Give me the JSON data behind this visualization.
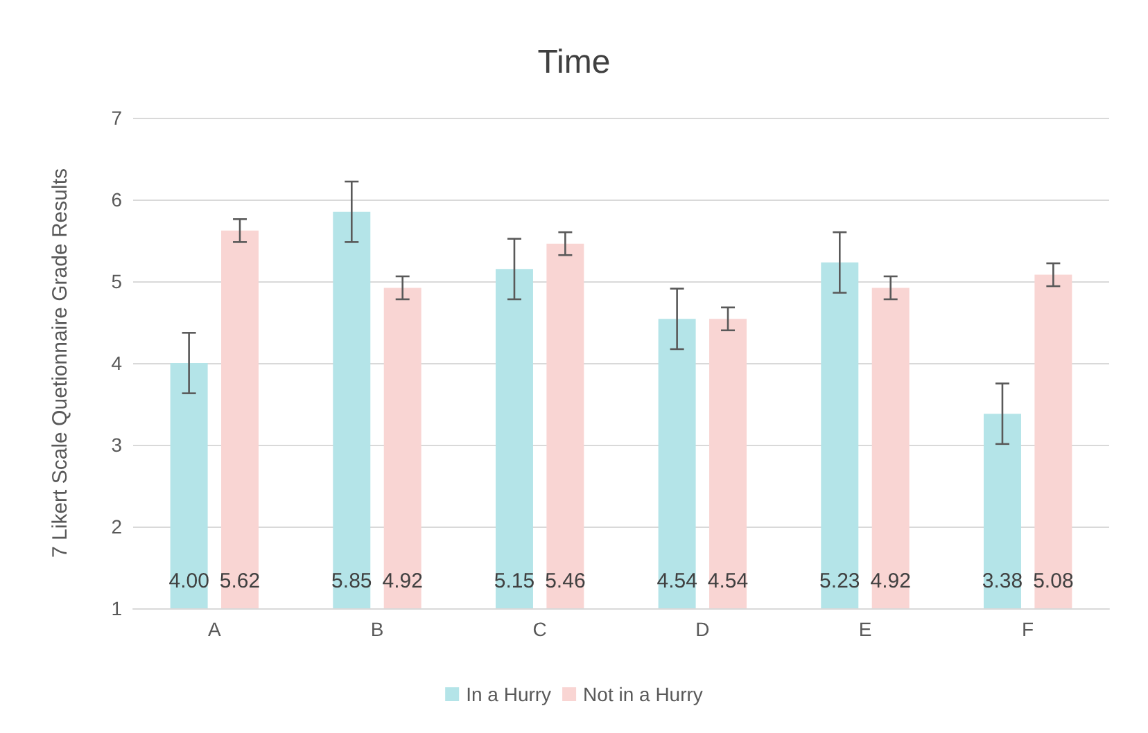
{
  "chart_data": {
    "type": "bar",
    "title": "Time",
    "ylabel": "7 Likert Scale Quetionnaire Grade Results",
    "categories": [
      "A",
      "B",
      "C",
      "D",
      "E",
      "F"
    ],
    "series": [
      {
        "name": "In a Hurry",
        "color": "#b4e4e8",
        "values": [
          4.0,
          5.85,
          5.15,
          4.54,
          5.23,
          3.38
        ],
        "errors": [
          0.37,
          0.37,
          0.37,
          0.37,
          0.37,
          0.37
        ],
        "value_labels": [
          "4.00",
          "5.85",
          "5.15",
          "4.54",
          "5.23",
          "3.38"
        ]
      },
      {
        "name": "Not in a Hurry",
        "color": "#f9d5d3",
        "values": [
          5.62,
          4.92,
          5.46,
          4.54,
          4.92,
          5.08
        ],
        "errors": [
          0.14,
          0.14,
          0.14,
          0.14,
          0.14,
          0.14
        ],
        "value_labels": [
          "5.62",
          "4.92",
          "5.46",
          "4.54",
          "4.92",
          "5.08"
        ]
      }
    ],
    "ylim": [
      1,
      7
    ],
    "yticks": [
      1,
      2,
      3,
      4,
      5,
      6,
      7
    ],
    "grid": "y",
    "legend": "bottom"
  }
}
